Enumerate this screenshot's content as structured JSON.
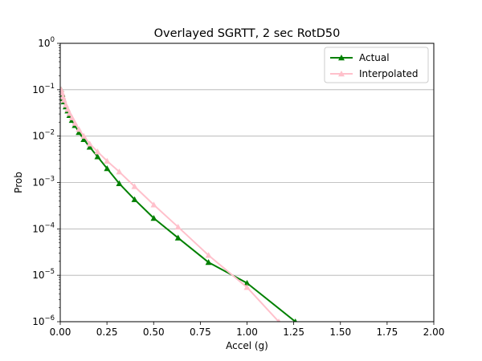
{
  "chart_data": {
    "type": "line",
    "title": "Overlayed SGRTT, 2 sec RotD50",
    "xlabel": "Accel (g)",
    "ylabel": "Prob",
    "xlim": [
      0,
      2
    ],
    "ylim": [
      1e-06,
      1
    ],
    "yscale": "log",
    "grid": "horizontal",
    "legend_position": "top-right",
    "x_ticks": [
      "0.00",
      "0.25",
      "0.50",
      "0.75",
      "1.00",
      "1.25",
      "1.50",
      "1.75",
      "2.00"
    ],
    "x_tick_values": [
      0,
      0.25,
      0.5,
      0.75,
      1.0,
      1.25,
      1.5,
      1.75,
      2.0
    ],
    "y_tick_exponents": [
      -6,
      -5,
      -4,
      -3,
      -2,
      -1,
      0
    ],
    "series": [
      {
        "name": "Actual",
        "color": "#008000",
        "marker": "triangle",
        "x": [
          0.005,
          0.01,
          0.015,
          0.02,
          0.03,
          0.04,
          0.05,
          0.063,
          0.079,
          0.1,
          0.126,
          0.158,
          0.2,
          0.251,
          0.316,
          0.398,
          0.501,
          0.631,
          0.794,
          1.0,
          1.259
        ],
        "y": [
          0.1,
          0.08,
          0.065,
          0.055,
          0.043,
          0.035,
          0.028,
          0.022,
          0.017,
          0.012,
          0.0085,
          0.0058,
          0.0036,
          0.002,
          0.00095,
          0.00043,
          0.00017,
          6.4e-05,
          1.9e-05,
          6.8e-06,
          1e-06
        ]
      },
      {
        "name": "Interpolated",
        "color": "#ffc0cb",
        "marker": "triangle",
        "x": [
          0.005,
          0.01,
          0.015,
          0.02,
          0.03,
          0.04,
          0.05,
          0.063,
          0.079,
          0.1,
          0.126,
          0.158,
          0.2,
          0.251,
          0.316,
          0.398,
          0.501,
          0.631,
          0.794,
          1.0,
          1.17
        ],
        "y": [
          0.1,
          0.085,
          0.07,
          0.06,
          0.047,
          0.038,
          0.031,
          0.025,
          0.019,
          0.014,
          0.01,
          0.0068,
          0.0046,
          0.0029,
          0.0017,
          0.00082,
          0.00033,
          0.00011,
          2.7e-05,
          5.5e-06,
          1e-06
        ]
      }
    ]
  }
}
